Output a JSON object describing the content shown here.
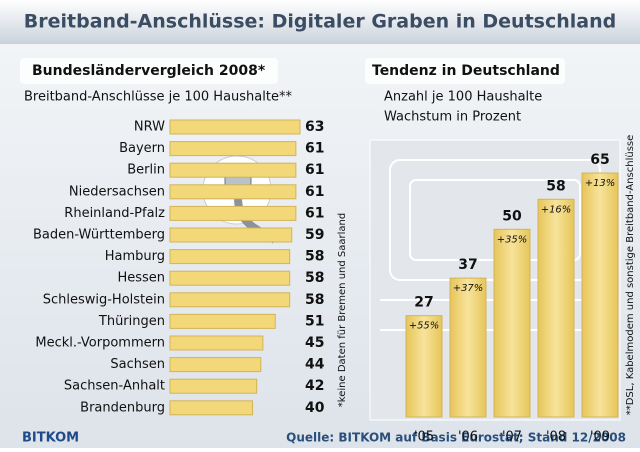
{
  "title": "Breitband-Anschlüsse: Digitaler Graben in Deutschland",
  "chart_data": [
    {
      "type": "barh",
      "title": "Bundesländervergleich 2008*",
      "subtitle": "Breitband-Anschlüsse je 100 Haushalte**",
      "categories": [
        "NRW",
        "Bayern",
        "Berlin",
        "Niedersachsen",
        "Rheinland-Pfalz",
        "Baden-Württemberg",
        "Hamburg",
        "Hessen",
        "Schleswig-Holstein",
        "Thüringen",
        "Meckl.-Vorpommern",
        "Sachsen",
        "Sachsen-Anhalt",
        "Brandenburg"
      ],
      "values": [
        63,
        61,
        61,
        61,
        61,
        59,
        58,
        58,
        58,
        51,
        45,
        44,
        42,
        40
      ],
      "color": "#f2d878",
      "note": "*keine Daten für Bremen und Saarland"
    },
    {
      "type": "bar",
      "title": "Tendenz in Deutschland",
      "subtitle": [
        "Anzahl je 100 Haushalte",
        "Wachstum in Prozent"
      ],
      "categories": [
        "'05",
        "'06",
        "'07",
        "'08",
        "'09"
      ],
      "values": [
        27,
        37,
        50,
        58,
        65
      ],
      "color": "#f2d878",
      "growth": {
        "values": [
          55,
          37,
          35,
          16,
          13
        ],
        "value_labels": [
          "+55%",
          "+37%",
          "+35%",
          "+16%",
          "+13%"
        ]
      },
      "note": "**DSL, Kabelmodem und sonstige Breitband-Anschlüsse"
    }
  ],
  "source": "Quelle: BITKOM auf Basis Eurostat; Stand 12/2008",
  "logo": "BITKOM"
}
